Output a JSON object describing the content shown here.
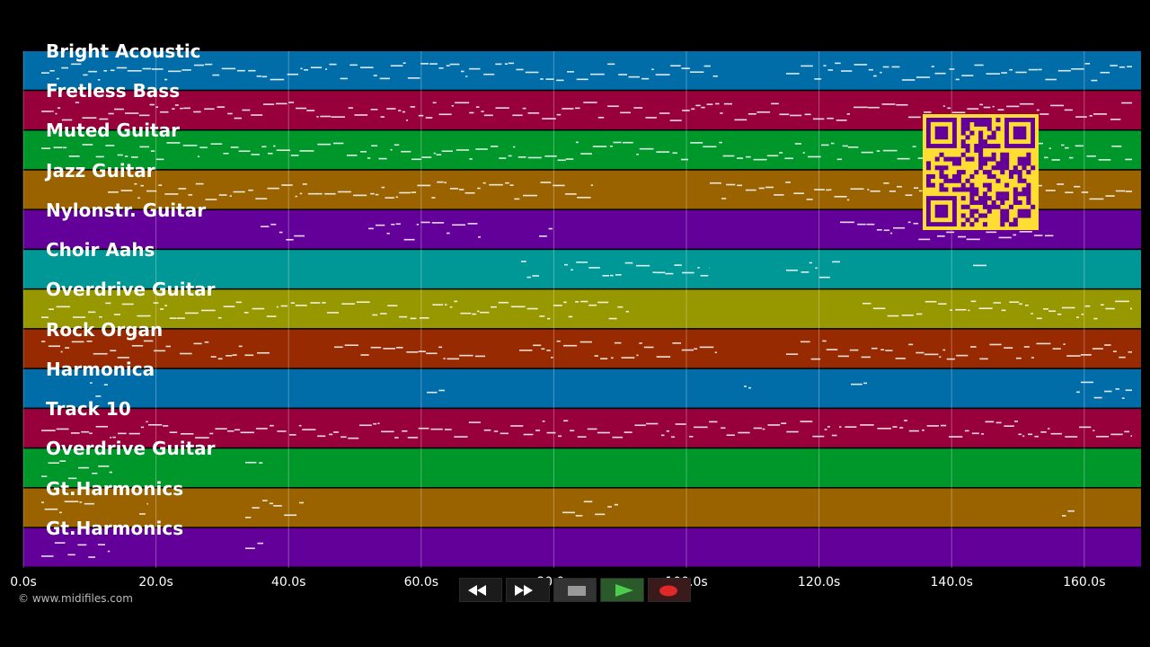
{
  "tracks": [
    {
      "name": "Bright Acoustic",
      "color": "#006ca8"
    },
    {
      "name": "Fretless Bass",
      "color": "#97003a"
    },
    {
      "name": "Muted Guitar",
      "color": "#00972a"
    },
    {
      "name": "Jazz Guitar",
      "color": "#9a6300"
    },
    {
      "name": "Nylonstr. Guitar",
      "color": "#63009a"
    },
    {
      "name": "Choir Aahs",
      "color": "#009797"
    },
    {
      "name": "Overdrive Guitar",
      "color": "#979700"
    },
    {
      "name": "Rock Organ",
      "color": "#972a00"
    },
    {
      "name": "Harmonica",
      "color": "#006ca8"
    },
    {
      "name": "Track 10",
      "color": "#97003a"
    },
    {
      "name": "Overdrive Guitar",
      "color": "#00972a"
    },
    {
      "name": "Gt.Harmonics",
      "color": "#9a6300"
    },
    {
      "name": "Gt.Harmonics",
      "color": "#63009a"
    }
  ],
  "timeline": {
    "ticks": [
      "0.0s",
      "20.0s",
      "40.0s",
      "60.0s",
      "80.0s",
      "100.0s",
      "120.0s",
      "140.0s",
      "160.0s"
    ],
    "max_seconds": 168
  },
  "copyright": "© www.midifiles.com",
  "transport": {
    "buttons": [
      {
        "id": "rewind",
        "icon": "rewind-icon"
      },
      {
        "id": "fast-forward",
        "icon": "fast-forward-icon"
      },
      {
        "id": "stop",
        "icon": "stop-icon"
      },
      {
        "id": "play",
        "icon": "play-icon"
      },
      {
        "id": "record",
        "icon": "record-icon"
      }
    ]
  },
  "colors": {
    "background": "#000000",
    "qr_background": "#ffdd33",
    "qr_modules": "#63009a"
  }
}
